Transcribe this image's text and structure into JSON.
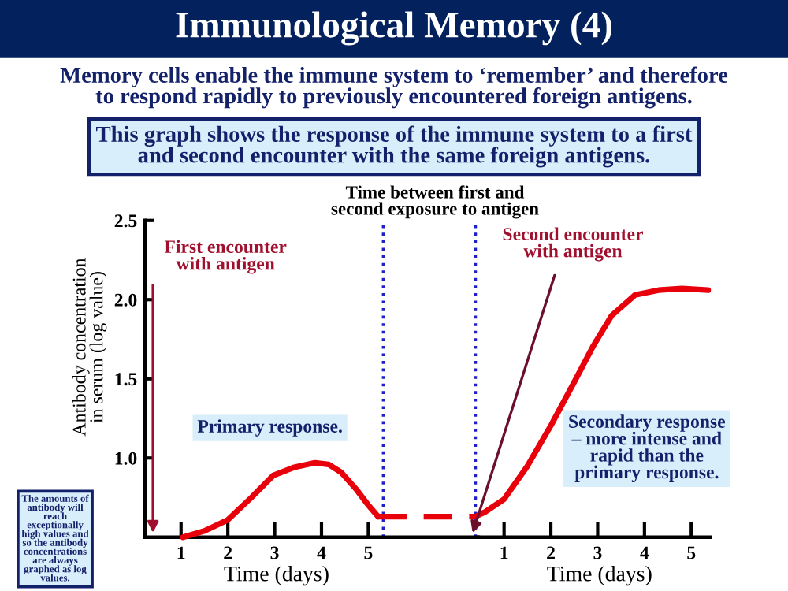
{
  "chart_data": [
    {
      "type": "line",
      "title": "Immunological Memory (4)",
      "subtitle": "Memory cells enable the immune system to ‘remember’ and therefore\nto respond rapidly to previously encountered foreign antigens.",
      "xlabel": "Time (days)",
      "ylabel": "Antibody concentration\nin serum (log value)",
      "xlim": [
        0.23,
        7.35
      ],
      "xticks": [
        1,
        2,
        3,
        4,
        5
      ],
      "ylim": [
        0.5,
        2.5
      ],
      "yticks": [
        {
          "value": 1,
          "label": "1.0"
        },
        {
          "value": 1.5,
          "label": "1.5"
        },
        {
          "value": 2,
          "label": "2.0"
        },
        {
          "value": 2.5,
          "label": "2.5"
        }
      ],
      "series": [
        {
          "color": "#e8000b",
          "line_style": "solid",
          "x": [
            1.04,
            1.5,
            2.0,
            2.5,
            2.97,
            3.4,
            3.86,
            4.15,
            4.42,
            4.75,
            4.98,
            5.21
          ],
          "values": [
            0.5,
            0.54,
            0.61,
            0.75,
            0.89,
            0.94,
            0.97,
            0.96,
            0.91,
            0.8,
            0.71,
            0.63
          ]
        },
        {
          "color": "#e8000b",
          "line_style": "dashed",
          "x": [
            5.21,
            7.35
          ],
          "values": [
            0.63,
            0.63
          ]
        }
      ],
      "ref_lines": [
        {
          "axis": "x",
          "value": 5.32,
          "color": "#2020c8",
          "line_style": "dotted"
        },
        {
          "axis": "x",
          "value": 7.29,
          "color": "#2020c8",
          "line_style": "dotted"
        }
      ],
      "annotations": [
        "This graph shows the response of the immune system to a first\nand second encounter with the same foreign antigens.",
        "Time between first and\nsecond exposure to antigen",
        "First encounter\nwith antigen",
        "Primary response.",
        "The amounts of\nantibody will\nreach\nexceptionally\nhigh values and\nso the antibody\nconcentrations\nare always\ngraphed as log\nvalues."
      ]
    },
    {
      "type": "line",
      "xlabel": "Time (days)",
      "xlim": [
        0.45,
        5.4
      ],
      "xticks": [
        1,
        2,
        3,
        4,
        5
      ],
      "ylim": [
        0.5,
        2.5
      ],
      "tick_labels": "x",
      "series": [
        {
          "color": "#e8000b",
          "line_style": "solid",
          "x": [
            0.45,
            0.6,
            1.0,
            1.5,
            2.01,
            2.5,
            2.91,
            3.3,
            3.8,
            4.3,
            4.8,
            5.36
          ],
          "values": [
            0.64,
            0.66,
            0.74,
            0.95,
            1.21,
            1.48,
            1.71,
            1.9,
            2.03,
            2.06,
            2.07,
            2.06
          ]
        }
      ],
      "annotations": [
        "Second encounter\nwith antigen",
        "Secondary response\n– more intense and\nrapid than the\nprimary response."
      ]
    }
  ]
}
